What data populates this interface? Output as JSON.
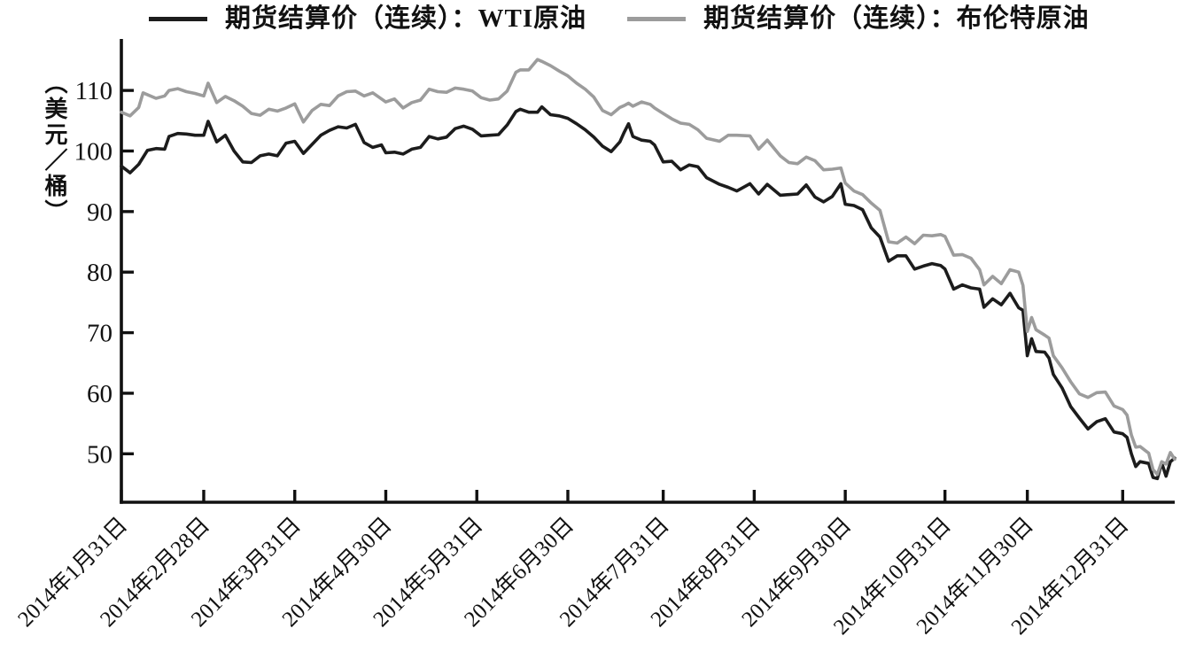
{
  "legend": {
    "items": [
      {
        "label": "期货结算价（连续）：WTI原油",
        "color": "#1c1c1c"
      },
      {
        "label": "期货结算价（连续）：布伦特原油",
        "color": "#9c9c9c"
      }
    ]
  },
  "y_axis": {
    "unit_label": "（美元／桶）",
    "ticks": [
      110,
      100,
      90,
      80,
      70,
      60,
      50
    ],
    "range": [
      42,
      118.5
    ]
  },
  "x_axis": {
    "range": [
      0,
      243
    ],
    "note": "x is trading-day index, 0 = 2014-01-31, axis extends to mid-January 2015",
    "ticks": [
      {
        "label": "2014年1月31日",
        "d": 0
      },
      {
        "label": "2014年2月28日",
        "d": 19
      },
      {
        "label": "2014年3月31日",
        "d": 40
      },
      {
        "label": "2014年4月30日",
        "d": 61
      },
      {
        "label": "2014年5月31日",
        "d": 82
      },
      {
        "label": "2014年6月30日",
        "d": 103
      },
      {
        "label": "2014年7月31日",
        "d": 125
      },
      {
        "label": "2014年8月31日",
        "d": 146
      },
      {
        "label": "2014年9月30日",
        "d": 167
      },
      {
        "label": "2014年10月31日",
        "d": 190
      },
      {
        "label": "2014年11月30日",
        "d": 209
      },
      {
        "label": "2014年12月31日",
        "d": 231
      }
    ]
  },
  "chart_data": {
    "type": "line",
    "title": "",
    "xlabel": "",
    "ylabel": "（美元／桶）",
    "ylim": [
      42,
      118.5
    ],
    "xlim": [
      0,
      243
    ],
    "grid": false,
    "legend_position": "top",
    "x_unit": "trading-day index from 2014-01-31 through mid-January 2015",
    "y_unit": "USD per barrel",
    "series": [
      {
        "name": "期货结算价（连续）：WTI原油",
        "color": "#1c1c1c",
        "points": [
          [
            0,
            97.5
          ],
          [
            2,
            96.4
          ],
          [
            4,
            97.8
          ],
          [
            6,
            100.1
          ],
          [
            8,
            100.4
          ],
          [
            10,
            100.3
          ],
          [
            11,
            102.4
          ],
          [
            13,
            102.9
          ],
          [
            15,
            102.8
          ],
          [
            17,
            102.6
          ],
          [
            19,
            102.6
          ],
          [
            20,
            104.9
          ],
          [
            22,
            101.5
          ],
          [
            24,
            102.6
          ],
          [
            26,
            100.0
          ],
          [
            28,
            98.2
          ],
          [
            30,
            98.1
          ],
          [
            32,
            99.2
          ],
          [
            34,
            99.5
          ],
          [
            36,
            99.2
          ],
          [
            38,
            101.3
          ],
          [
            40,
            101.6
          ],
          [
            42,
            99.6
          ],
          [
            44,
            101.1
          ],
          [
            46,
            102.6
          ],
          [
            48,
            103.4
          ],
          [
            50,
            104.0
          ],
          [
            52,
            103.8
          ],
          [
            54,
            104.4
          ],
          [
            56,
            101.4
          ],
          [
            58,
            100.6
          ],
          [
            60,
            101.0
          ],
          [
            61,
            99.7
          ],
          [
            63,
            99.8
          ],
          [
            65,
            99.5
          ],
          [
            67,
            100.3
          ],
          [
            69,
            100.6
          ],
          [
            71,
            102.4
          ],
          [
            73,
            102.0
          ],
          [
            75,
            102.3
          ],
          [
            77,
            103.7
          ],
          [
            79,
            104.1
          ],
          [
            81,
            103.6
          ],
          [
            83,
            102.5
          ],
          [
            85,
            102.6
          ],
          [
            87,
            102.7
          ],
          [
            89,
            104.3
          ],
          [
            91,
            106.5
          ],
          [
            92,
            106.9
          ],
          [
            94,
            106.4
          ],
          [
            96,
            106.4
          ],
          [
            97,
            107.3
          ],
          [
            99,
            106.0
          ],
          [
            101,
            105.8
          ],
          [
            103,
            105.4
          ],
          [
            105,
            104.5
          ],
          [
            107,
            103.5
          ],
          [
            109,
            102.3
          ],
          [
            111,
            100.8
          ],
          [
            113,
            99.9
          ],
          [
            115,
            101.5
          ],
          [
            116,
            103.1
          ],
          [
            117,
            104.5
          ],
          [
            118,
            102.4
          ],
          [
            120,
            101.8
          ],
          [
            122,
            101.6
          ],
          [
            123,
            101.0
          ],
          [
            125,
            98.2
          ],
          [
            127,
            98.3
          ],
          [
            129,
            96.9
          ],
          [
            131,
            97.7
          ],
          [
            133,
            97.4
          ],
          [
            135,
            95.6
          ],
          [
            138,
            94.5
          ],
          [
            140,
            94.0
          ],
          [
            142,
            93.4
          ],
          [
            145,
            94.6
          ],
          [
            147,
            92.9
          ],
          [
            149,
            94.5
          ],
          [
            152,
            92.7
          ],
          [
            154,
            92.8
          ],
          [
            156,
            92.9
          ],
          [
            158,
            94.4
          ],
          [
            160,
            92.4
          ],
          [
            162,
            91.6
          ],
          [
            164,
            92.5
          ],
          [
            166,
            94.6
          ],
          [
            167,
            91.2
          ],
          [
            169,
            91.0
          ],
          [
            171,
            90.3
          ],
          [
            173,
            87.3
          ],
          [
            175,
            85.8
          ],
          [
            177,
            81.8
          ],
          [
            179,
            82.7
          ],
          [
            181,
            82.7
          ],
          [
            183,
            80.5
          ],
          [
            185,
            81.0
          ],
          [
            187,
            81.4
          ],
          [
            189,
            81.1
          ],
          [
            190,
            80.5
          ],
          [
            192,
            77.2
          ],
          [
            194,
            77.9
          ],
          [
            196,
            77.4
          ],
          [
            198,
            77.2
          ],
          [
            199,
            74.2
          ],
          [
            201,
            75.6
          ],
          [
            203,
            74.6
          ],
          [
            205,
            76.5
          ],
          [
            207,
            74.1
          ],
          [
            208,
            73.7
          ],
          [
            209,
            66.2
          ],
          [
            210,
            69.0
          ],
          [
            211,
            66.9
          ],
          [
            213,
            66.8
          ],
          [
            214,
            65.8
          ],
          [
            215,
            63.1
          ],
          [
            217,
            60.9
          ],
          [
            219,
            57.8
          ],
          [
            221,
            55.9
          ],
          [
            223,
            54.1
          ],
          [
            225,
            55.3
          ],
          [
            227,
            55.8
          ],
          [
            229,
            53.6
          ],
          [
            231,
            53.3
          ],
          [
            232,
            52.7
          ],
          [
            233,
            50.0
          ],
          [
            234,
            47.9
          ],
          [
            235,
            48.7
          ],
          [
            237,
            48.4
          ],
          [
            238,
            46.1
          ],
          [
            239,
            45.9
          ],
          [
            240,
            48.5
          ],
          [
            241,
            46.3
          ],
          [
            242,
            48.7
          ],
          [
            243,
            49.3
          ]
        ]
      },
      {
        "name": "期货结算价（连续）：布伦特原油",
        "color": "#9c9c9c",
        "points": [
          [
            0,
            106.4
          ],
          [
            2,
            105.8
          ],
          [
            4,
            107.2
          ],
          [
            5,
            109.6
          ],
          [
            8,
            108.7
          ],
          [
            10,
            109.1
          ],
          [
            11,
            110.0
          ],
          [
            13,
            110.3
          ],
          [
            15,
            109.8
          ],
          [
            17,
            109.5
          ],
          [
            19,
            109.1
          ],
          [
            20,
            111.2
          ],
          [
            22,
            108.0
          ],
          [
            24,
            109.0
          ],
          [
            26,
            108.3
          ],
          [
            28,
            107.4
          ],
          [
            30,
            106.2
          ],
          [
            32,
            105.9
          ],
          [
            34,
            106.9
          ],
          [
            36,
            106.6
          ],
          [
            38,
            107.1
          ],
          [
            40,
            107.8
          ],
          [
            42,
            104.8
          ],
          [
            44,
            106.7
          ],
          [
            46,
            107.7
          ],
          [
            48,
            107.5
          ],
          [
            50,
            109.1
          ],
          [
            52,
            109.8
          ],
          [
            54,
            109.9
          ],
          [
            56,
            109.1
          ],
          [
            58,
            109.6
          ],
          [
            60,
            108.6
          ],
          [
            61,
            108.1
          ],
          [
            63,
            108.6
          ],
          [
            65,
            107.1
          ],
          [
            67,
            108.0
          ],
          [
            69,
            108.4
          ],
          [
            71,
            110.2
          ],
          [
            73,
            109.8
          ],
          [
            75,
            109.7
          ],
          [
            77,
            110.4
          ],
          [
            79,
            110.2
          ],
          [
            81,
            109.9
          ],
          [
            83,
            108.8
          ],
          [
            85,
            108.4
          ],
          [
            87,
            108.6
          ],
          [
            89,
            109.9
          ],
          [
            91,
            113.0
          ],
          [
            92,
            113.4
          ],
          [
            94,
            113.4
          ],
          [
            96,
            115.1
          ],
          [
            97,
            114.8
          ],
          [
            99,
            114.1
          ],
          [
            101,
            113.2
          ],
          [
            103,
            112.4
          ],
          [
            105,
            111.2
          ],
          [
            107,
            110.2
          ],
          [
            109,
            108.9
          ],
          [
            111,
            106.7
          ],
          [
            113,
            106.0
          ],
          [
            115,
            107.2
          ],
          [
            116,
            107.5
          ],
          [
            117,
            107.9
          ],
          [
            118,
            107.4
          ],
          [
            120,
            108.1
          ],
          [
            122,
            107.7
          ],
          [
            123,
            107.1
          ],
          [
            125,
            106.2
          ],
          [
            127,
            105.3
          ],
          [
            129,
            104.6
          ],
          [
            131,
            104.4
          ],
          [
            133,
            103.5
          ],
          [
            135,
            102.1
          ],
          [
            138,
            101.6
          ],
          [
            140,
            102.6
          ],
          [
            142,
            102.6
          ],
          [
            145,
            102.5
          ],
          [
            147,
            100.3
          ],
          [
            149,
            101.8
          ],
          [
            152,
            99.2
          ],
          [
            154,
            98.1
          ],
          [
            156,
            97.9
          ],
          [
            158,
            99.0
          ],
          [
            160,
            98.4
          ],
          [
            162,
            96.9
          ],
          [
            164,
            97.0
          ],
          [
            166,
            97.2
          ],
          [
            167,
            94.7
          ],
          [
            169,
            93.4
          ],
          [
            171,
            92.8
          ],
          [
            173,
            91.4
          ],
          [
            175,
            90.2
          ],
          [
            177,
            85.0
          ],
          [
            179,
            84.8
          ],
          [
            181,
            85.8
          ],
          [
            183,
            84.7
          ],
          [
            185,
            86.1
          ],
          [
            187,
            86.0
          ],
          [
            189,
            86.2
          ],
          [
            190,
            85.9
          ],
          [
            192,
            82.8
          ],
          [
            194,
            82.9
          ],
          [
            196,
            82.3
          ],
          [
            198,
            80.4
          ],
          [
            199,
            77.9
          ],
          [
            201,
            79.3
          ],
          [
            203,
            78.1
          ],
          [
            205,
            80.4
          ],
          [
            207,
            80.0
          ],
          [
            208,
            77.8
          ],
          [
            209,
            70.2
          ],
          [
            210,
            72.5
          ],
          [
            211,
            70.5
          ],
          [
            213,
            69.6
          ],
          [
            214,
            69.1
          ],
          [
            215,
            66.2
          ],
          [
            217,
            64.2
          ],
          [
            219,
            61.9
          ],
          [
            221,
            59.9
          ],
          [
            223,
            59.3
          ],
          [
            225,
            60.1
          ],
          [
            227,
            60.2
          ],
          [
            229,
            57.9
          ],
          [
            231,
            57.3
          ],
          [
            232,
            56.4
          ],
          [
            233,
            53.1
          ],
          [
            234,
            51.1
          ],
          [
            235,
            51.2
          ],
          [
            237,
            50.1
          ],
          [
            238,
            47.4
          ],
          [
            239,
            46.6
          ],
          [
            240,
            48.7
          ],
          [
            241,
            48.3
          ],
          [
            242,
            50.2
          ],
          [
            243,
            49.1
          ]
        ]
      }
    ]
  },
  "style": {
    "axis_color": "#111111",
    "background": "#ffffff",
    "line_width": 3.6
  }
}
